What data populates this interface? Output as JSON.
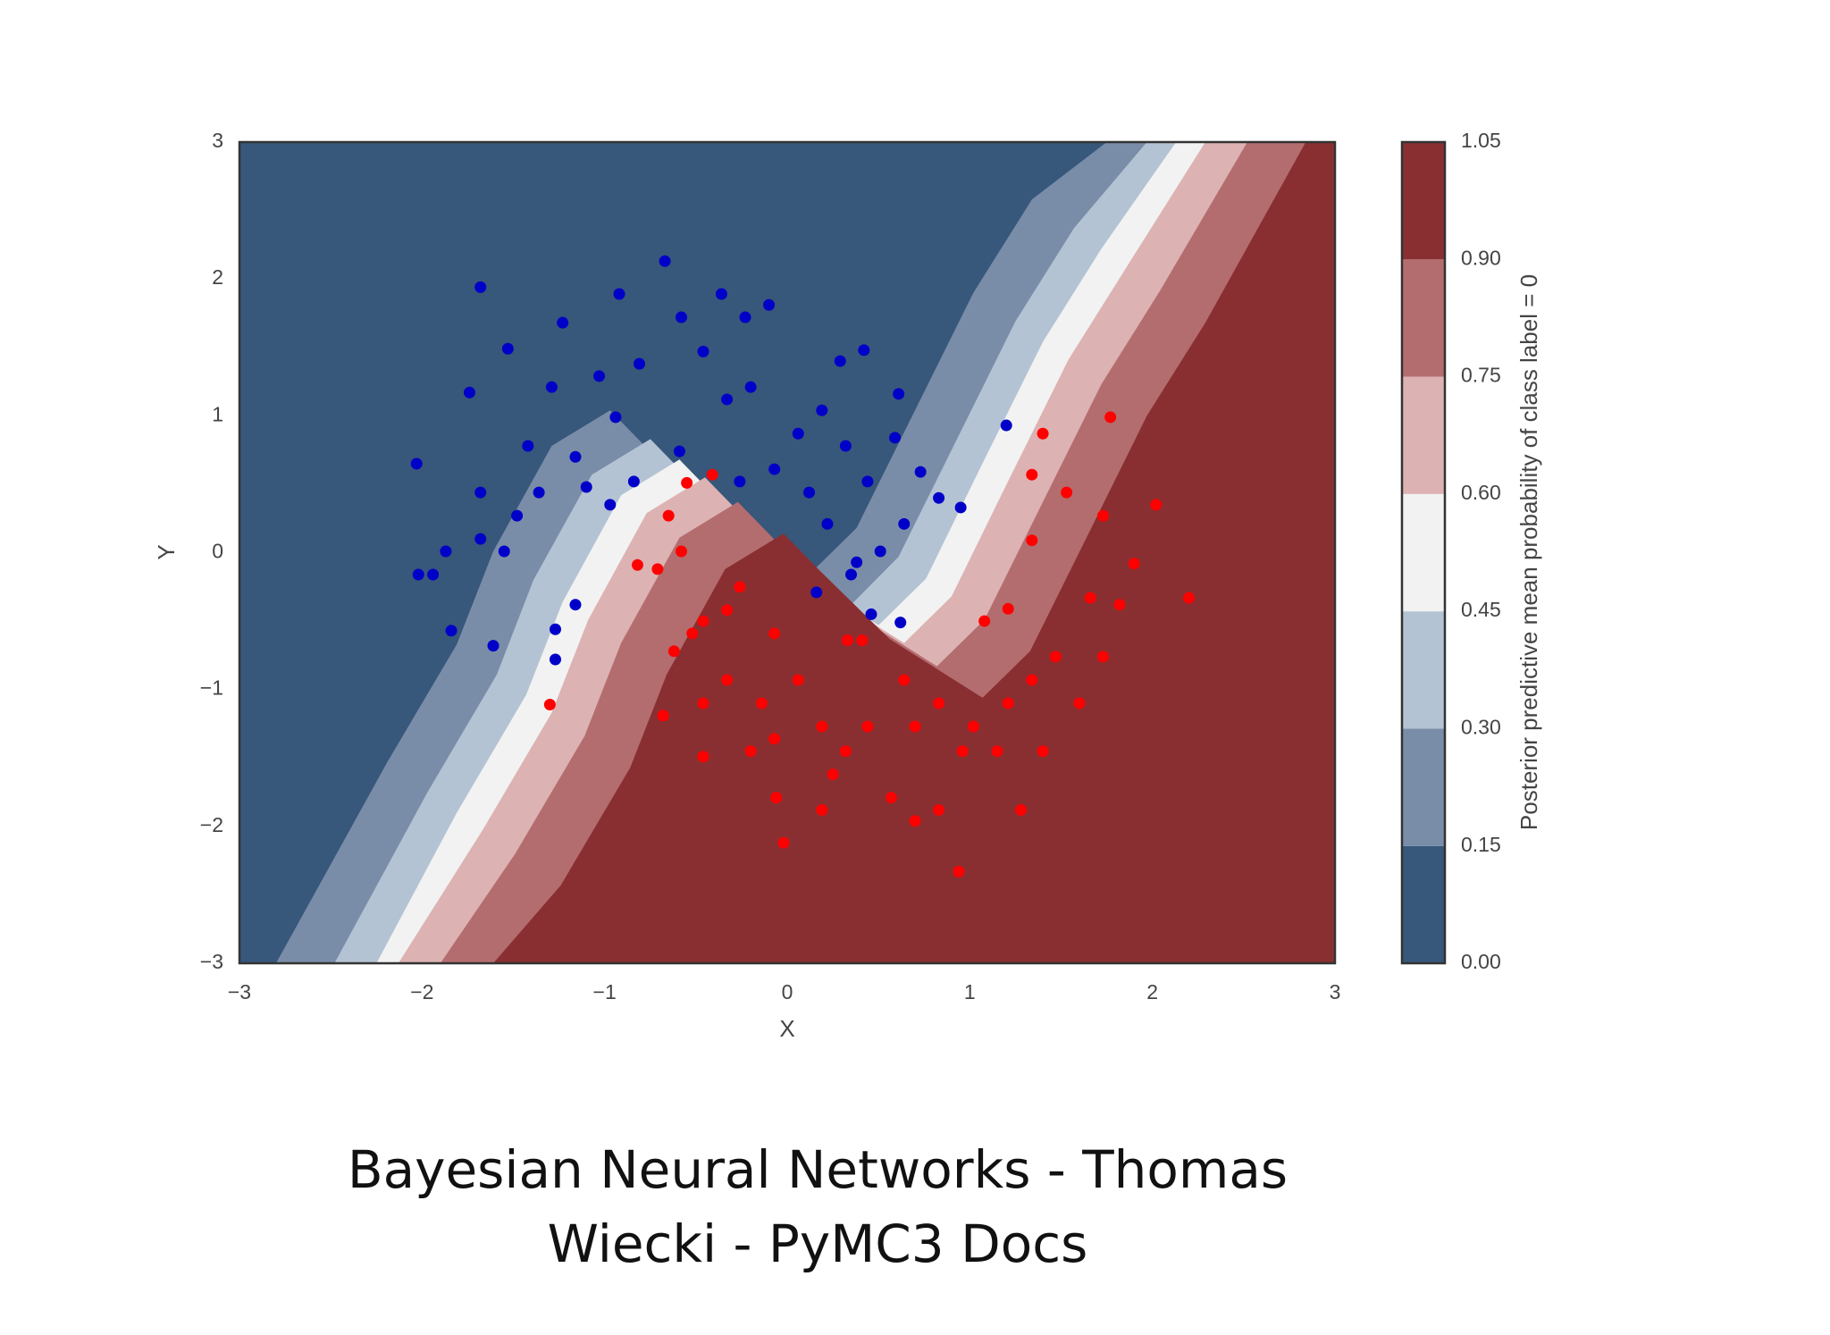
{
  "chart_data": {
    "type": "contour-scatter",
    "xlabel": "X",
    "ylabel": "Y",
    "xlim": [
      -3,
      3
    ],
    "ylim": [
      -3,
      3
    ],
    "xticks": [
      {
        "value": -3,
        "label": "−3"
      },
      {
        "value": -2,
        "label": "−2"
      },
      {
        "value": -1,
        "label": "−1"
      },
      0,
      1,
      2,
      3
    ],
    "yticks": [
      {
        "value": -3,
        "label": "−3"
      },
      {
        "value": -2,
        "label": "−2"
      },
      {
        "value": -1,
        "label": "−1"
      },
      0,
      1,
      2,
      3
    ],
    "grid": false,
    "colorbar": {
      "label": "Posterior predictive mean probability of class label = 0",
      "ticks": [
        {
          "value": 0,
          "label": "0.00"
        },
        {
          "value": 0.15,
          "label": "0.15"
        },
        {
          "value": 0.3,
          "label": "0.30"
        },
        {
          "value": 0.45,
          "label": "0.45"
        },
        {
          "value": 0.6,
          "label": "0.60"
        },
        {
          "value": 0.75,
          "label": "0.75"
        },
        {
          "value": 0.9,
          "label": "0.90"
        },
        {
          "value": 1.05,
          "label": "1.05"
        }
      ],
      "colors": [
        "#37577b",
        "#7a8da8",
        "#b4c3d3",
        "#f2f2f2",
        "#ddb2b2",
        "#b46d6f",
        "#892f32"
      ]
    },
    "contour_lines": [
      {
        "x": [
          1.75,
          1.34,
          1.02,
          0.7,
          0.38,
          0.12,
          -0.39,
          -0.78,
          -0.97,
          -1.29,
          -1.61,
          -1.81,
          -2.19,
          -2.8
        ],
        "y": [
          3,
          2.58,
          1.9,
          1.04,
          0.18,
          -0.16,
          0.27,
          0.78,
          1.04,
          0.78,
          0.01,
          -0.67,
          -1.53,
          -3
        ]
      },
      {
        "x": [
          1.97,
          1.57,
          1.25,
          0.93,
          0.61,
          0.35,
          -0.17,
          -0.56,
          -0.75,
          -1.07,
          -1.39,
          -1.59,
          -1.97,
          -2.48
        ],
        "y": [
          3,
          2.37,
          1.69,
          0.83,
          -0.03,
          -0.38,
          0.06,
          0.57,
          0.83,
          0.57,
          -0.2,
          -0.89,
          -1.75,
          -3
        ]
      },
      {
        "x": [
          2.13,
          1.72,
          1.4,
          1.08,
          0.76,
          0.5,
          -0.01,
          -0.4,
          -0.59,
          -0.91,
          -1.23,
          -1.43,
          -1.81,
          -2.25
        ],
        "y": [
          3,
          2.22,
          1.54,
          0.68,
          -0.19,
          -0.53,
          -0.1,
          0.42,
          0.68,
          0.42,
          -0.36,
          -1.04,
          -1.9,
          -3
        ]
      },
      {
        "x": [
          2.29,
          1.86,
          1.54,
          1.22,
          0.9,
          0.64,
          0.13,
          -0.26,
          -0.45,
          -0.77,
          -1.09,
          -1.29,
          -1.67,
          -2.13
        ],
        "y": [
          3,
          2.09,
          1.41,
          0.55,
          -0.32,
          -0.66,
          -0.23,
          0.29,
          0.55,
          0.29,
          -0.49,
          -1.17,
          -2.03,
          -3
        ]
      },
      {
        "x": [
          2.52,
          2.04,
          1.72,
          1.4,
          1.08,
          0.82,
          0.31,
          -0.08,
          -0.27,
          -0.59,
          -0.91,
          -1.11,
          -1.49,
          -1.9
        ],
        "y": [
          3,
          1.91,
          1.23,
          0.37,
          -0.49,
          -0.83,
          -0.4,
          0.11,
          0.37,
          0.11,
          -0.66,
          -1.34,
          -2.2,
          -3
        ]
      },
      {
        "x": [
          2.84,
          2.29,
          1.97,
          1.65,
          1.33,
          1.07,
          0.56,
          0.17,
          -0.02,
          -0.34,
          -0.66,
          -0.86,
          -1.24,
          -1.61
        ],
        "y": [
          3,
          1.68,
          1.0,
          0.14,
          -0.72,
          -1.06,
          -0.63,
          -0.12,
          0.14,
          -0.12,
          -0.89,
          -1.57,
          -2.43,
          -3
        ]
      }
    ],
    "series": [
      {
        "color": "#0000c8",
        "x": [
          -1.68,
          -0.67,
          -2.03,
          -2.02,
          -1.84,
          -1.61,
          -1.27,
          -1.16,
          -1.27,
          -1.74,
          -1.53,
          -1.23,
          -0.92,
          -0.58,
          -0.36,
          -0.1,
          -0.23,
          0.29,
          0.42,
          0.61,
          0.59,
          0.73,
          0.95,
          1.2,
          0.83,
          0.64,
          0.62,
          0.46,
          0.16,
          0.35,
          0.22,
          0.12,
          -0.07,
          -0.2,
          0.19,
          -0.59,
          -0.84,
          -0.97,
          -1.1,
          -1.36,
          -1.48,
          -1.55,
          -1.68,
          -1.87,
          -1.94,
          -1.42,
          -1.29,
          -1.03,
          -0.81,
          -0.46,
          -0.33,
          -0.94,
          -1.16,
          -1.68,
          0.44,
          0.32,
          0.51,
          0.38,
          -0.26,
          0.06
        ],
        "y": [
          1.94,
          2.13,
          0.65,
          -0.16,
          -0.57,
          -0.68,
          -0.78,
          -0.38,
          -0.56,
          1.17,
          1.49,
          1.68,
          1.89,
          1.72,
          1.89,
          1.81,
          1.72,
          1.4,
          1.48,
          1.16,
          0.84,
          0.59,
          0.33,
          0.93,
          0.4,
          0.21,
          -0.51,
          -0.45,
          -0.29,
          -0.16,
          0.21,
          0.44,
          0.61,
          1.21,
          1.04,
          0.74,
          0.52,
          0.35,
          0.48,
          0.44,
          0.27,
          0.01,
          0.1,
          0.01,
          -0.16,
          0.78,
          1.21,
          1.29,
          1.38,
          1.47,
          1.12,
          0.99,
          0.7,
          0.44,
          0.52,
          0.78,
          0.01,
          -0.07,
          0.52,
          0.87
        ]
      },
      {
        "color": "#ff0000",
        "x": [
          -1.3,
          1.77,
          1.4,
          1.34,
          2.02,
          2.2,
          1.9,
          0.94,
          -0.02,
          -0.41,
          -0.55,
          -0.65,
          -0.82,
          -0.71,
          -0.58,
          0.33,
          0.41,
          0.64,
          0.83,
          1.08,
          1.21,
          1.34,
          1.53,
          1.73,
          1.66,
          1.82,
          1.73,
          1.6,
          1.4,
          1.28,
          0.96,
          0.83,
          0.7,
          0.57,
          0.32,
          0.19,
          -0.06,
          -0.2,
          -0.46,
          -0.62,
          -0.46,
          -0.26,
          -0.07,
          0.06,
          -0.14,
          -0.33,
          0.19,
          0.44,
          0.7,
          1.02,
          1.21,
          1.47,
          1.34,
          1.15,
          -0.46,
          -0.68,
          -0.33,
          -0.52,
          -0.07,
          0.25
        ],
        "y": [
          -1.11,
          0.99,
          0.87,
          0.57,
          0.35,
          -0.33,
          -0.08,
          -2.33,
          -2.12,
          0.57,
          0.51,
          0.27,
          -0.09,
          -0.12,
          0.01,
          -0.64,
          -0.64,
          -0.93,
          -1.1,
          -0.5,
          -0.41,
          0.09,
          0.44,
          0.27,
          -0.33,
          -0.38,
          -0.76,
          -1.1,
          -1.45,
          -1.88,
          -1.45,
          -1.88,
          -1.96,
          -1.79,
          -1.45,
          -1.88,
          -1.79,
          -1.45,
          -1.1,
          -0.72,
          -0.5,
          -0.25,
          -0.59,
          -0.93,
          -1.1,
          -0.93,
          -1.27,
          -1.27,
          -1.27,
          -1.27,
          -1.1,
          -0.76,
          -0.93,
          -1.45,
          -1.49,
          -1.19,
          -0.42,
          -0.59,
          -1.36,
          -1.62
        ]
      }
    ]
  },
  "caption_lines": [
    "Bayesian Neural Networks - Thomas",
    "Wiecki - PyMC3 Docs"
  ]
}
